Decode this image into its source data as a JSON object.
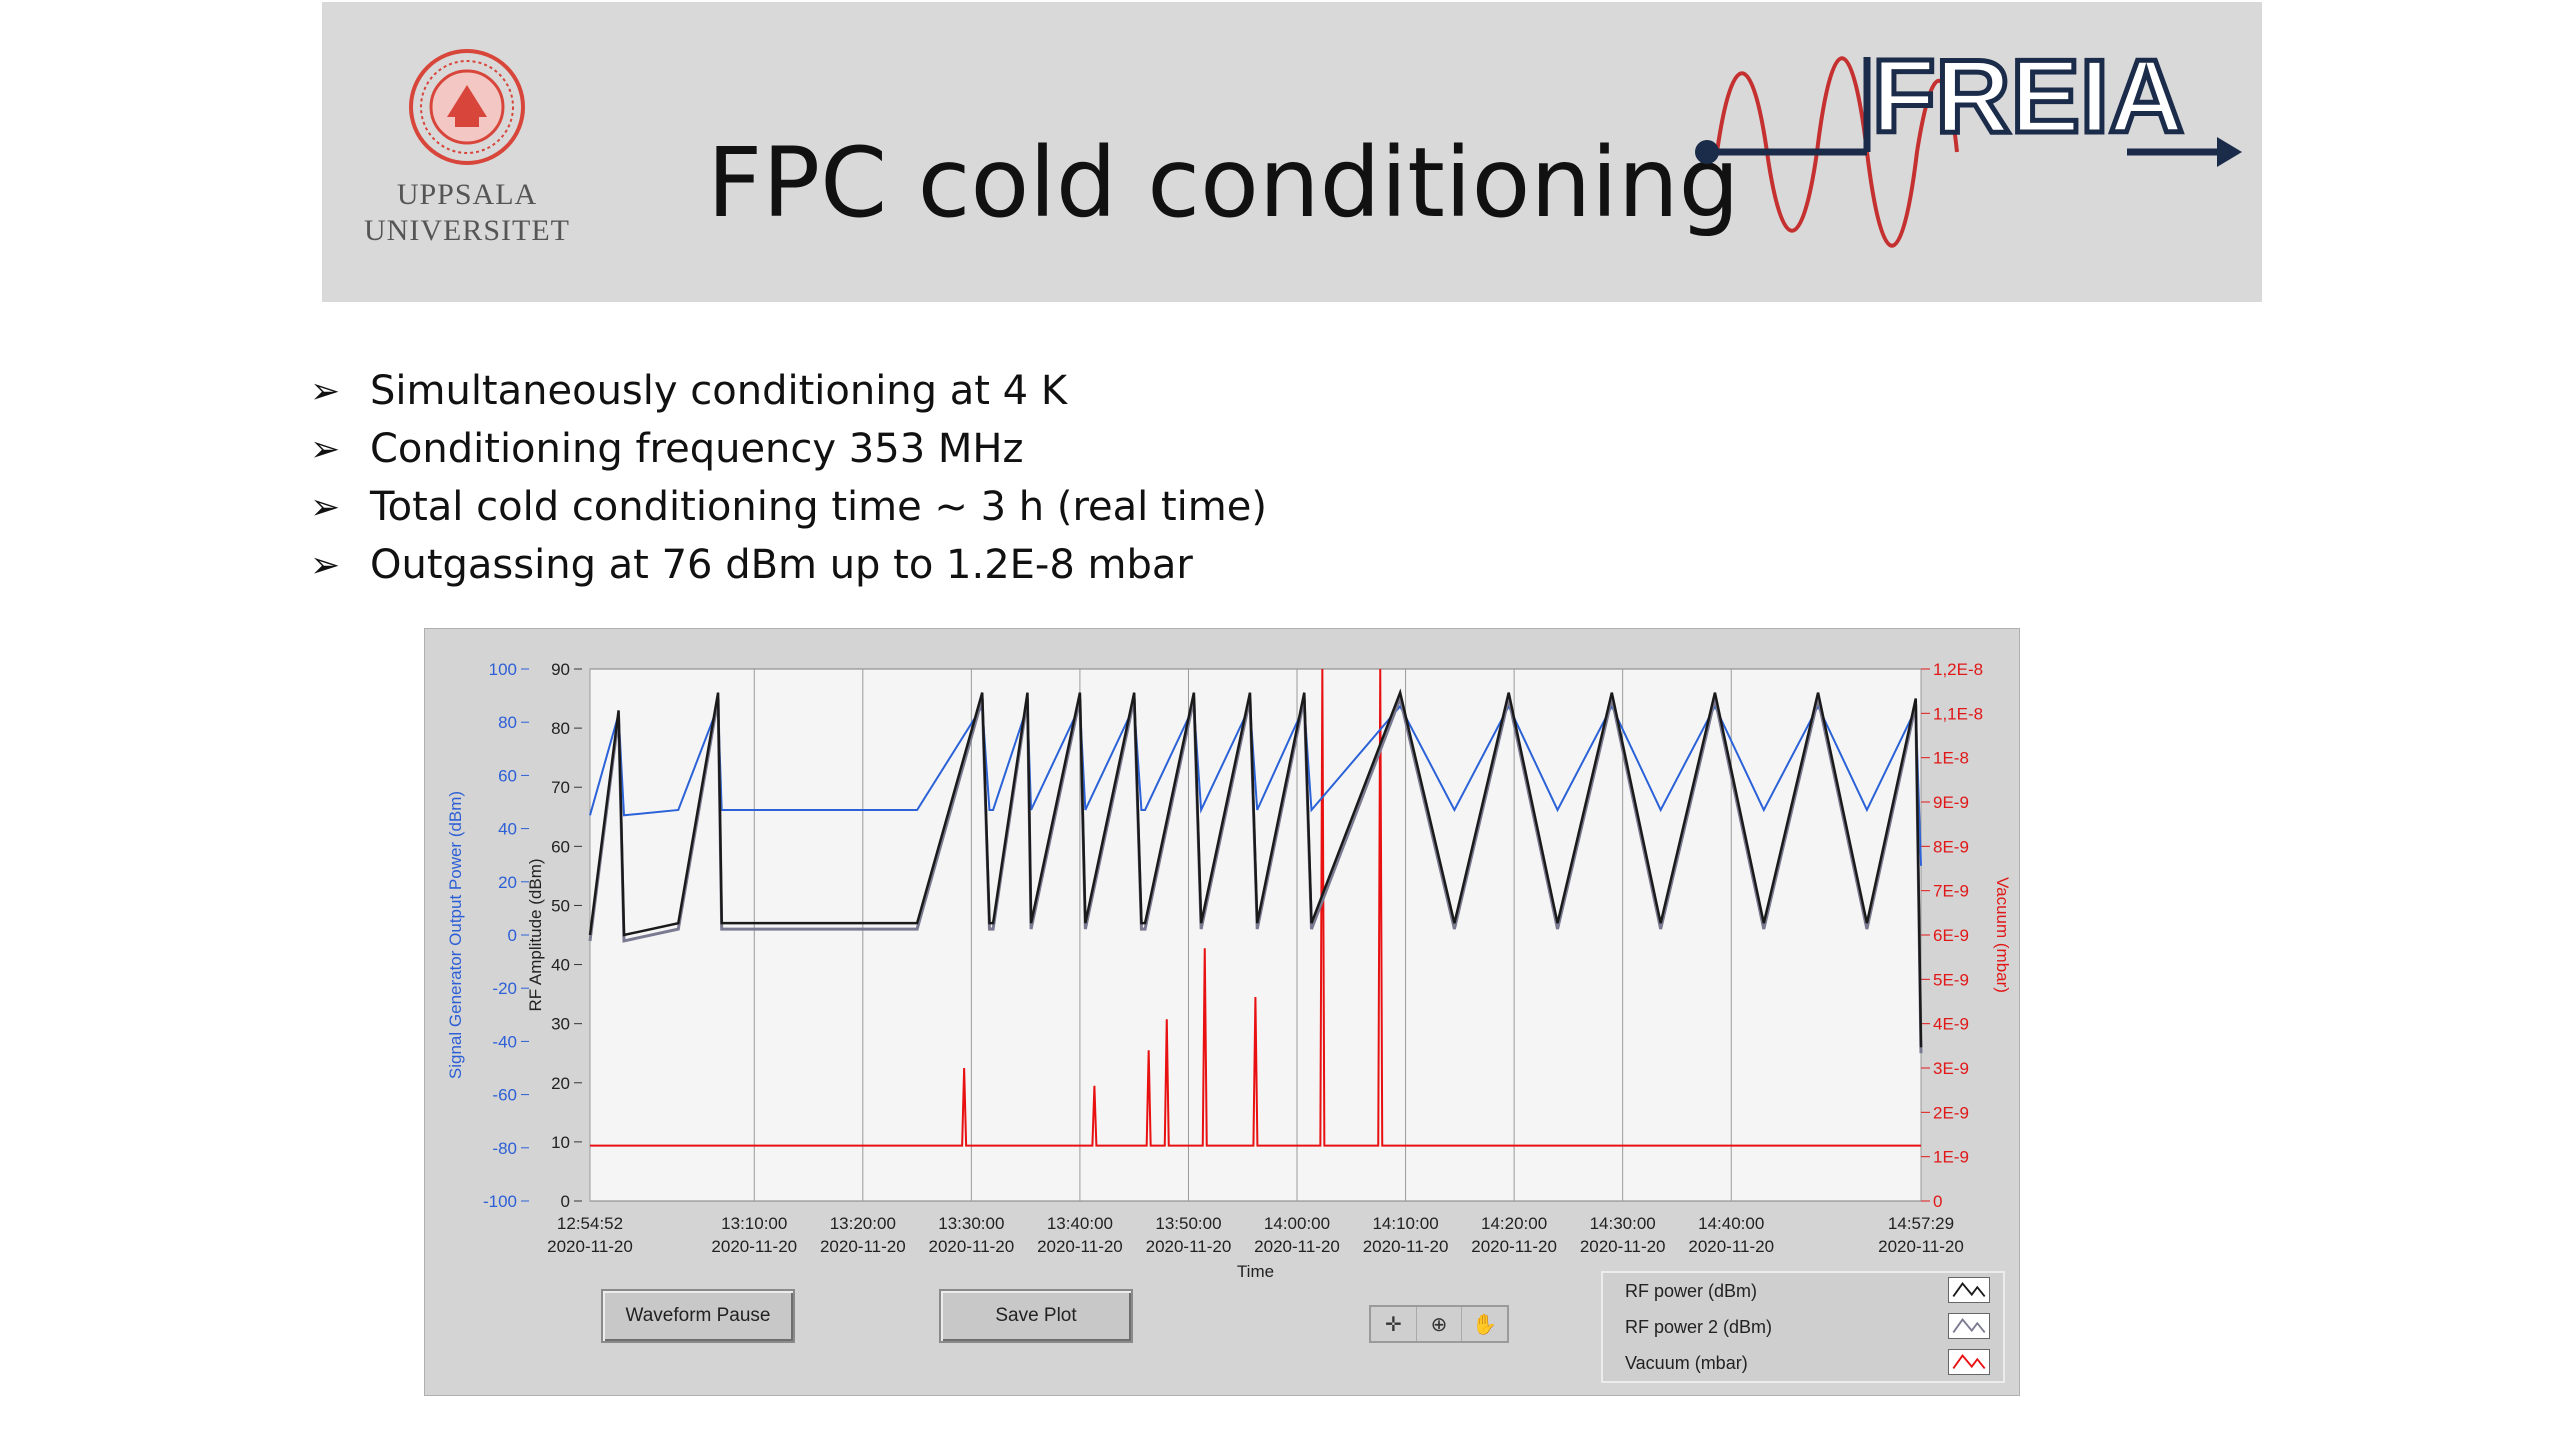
{
  "slide": {
    "title": "FPC cold conditioning",
    "university_lines": [
      "UPPSALA",
      "UNIVERSITET"
    ],
    "freia_logo_text": "FREIA",
    "bullets": [
      "Simultaneously conditioning at 4 K",
      "Conditioning frequency 353 MHz",
      "Total cold conditioning time ~ 3 h (real time)",
      "Outgassing at 76 dBm up to 1.2E-8 mbar"
    ]
  },
  "colors": {
    "blue_axis": "#2c5fd6",
    "red_axis": "#e01818",
    "rf_power": "#1a1a1a",
    "rf_power2": "#7a7a90",
    "vacuum": "#e81010",
    "generator": "#2b62d8",
    "uu_red": "#d8453a"
  },
  "panel": {
    "buttons": {
      "waveform_pause": "Waveform Pause",
      "save_plot": "Save Plot"
    },
    "tool_icons": [
      "crosshair-icon",
      "zoom-icon",
      "pan-hand-icon"
    ],
    "legend": [
      {
        "label": "RF power (dBm)",
        "color": "#1a1a1a"
      },
      {
        "label": "RF power 2 (dBm)",
        "color": "#7a7a90"
      },
      {
        "label": "Vacuum (mbar)",
        "color": "#e81010"
      }
    ]
  },
  "chart_data": {
    "type": "line",
    "xlabel": "Time",
    "ylabel_outer": "Signal Generator Output Power (dBm)",
    "ylabel_inner": "RF Amplitude (dBm)",
    "ylabel_right": "Vacuum (mbar)",
    "y_outer_ticks": [
      "100",
      "80",
      "60",
      "40",
      "20",
      "0",
      "-20",
      "-40",
      "-60",
      "-80",
      "-100"
    ],
    "y_inner_ticks": [
      "90",
      "80",
      "70",
      "60",
      "50",
      "40",
      "30",
      "20",
      "10",
      "0"
    ],
    "y_right_ticks": [
      "1,2E-8",
      "1,1E-8",
      "1E-8",
      "9E-9",
      "8E-9",
      "7E-9",
      "6E-9",
      "5E-9",
      "4E-9",
      "3E-9",
      "2E-9",
      "1E-9",
      "0"
    ],
    "x_ticks": [
      {
        "t": "12:54:52",
        "d": "2020-11-20"
      },
      {
        "t": "13:10:00",
        "d": "2020-11-20"
      },
      {
        "t": "13:20:00",
        "d": "2020-11-20"
      },
      {
        "t": "13:30:00",
        "d": "2020-11-20"
      },
      {
        "t": "13:40:00",
        "d": "2020-11-20"
      },
      {
        "t": "13:50:00",
        "d": "2020-11-20"
      },
      {
        "t": "14:00:00",
        "d": "2020-11-20"
      },
      {
        "t": "14:10:00",
        "d": "2020-11-20"
      },
      {
        "t": "14:20:00",
        "d": "2020-11-20"
      },
      {
        "t": "14:30:00",
        "d": "2020-11-20"
      },
      {
        "t": "14:40:00",
        "d": "2020-11-20"
      },
      {
        "t": "14:57:29",
        "d": "2020-11-20"
      }
    ],
    "ylim_outer": [
      -100,
      100
    ],
    "ylim_inner": [
      0,
      90
    ],
    "ylim_right": [
      0,
      1.2e-08
    ],
    "grid": "vertical",
    "rf_cycles": [
      {
        "start": "12:54:52",
        "peak": "12:57:30",
        "end": "12:58:00",
        "peak_dBm": 83,
        "low_dBm": 45
      },
      {
        "start": "13:03:00",
        "peak": "13:06:40",
        "end": "13:07:00",
        "peak_dBm": 86,
        "low_dBm": 47
      },
      {
        "start": "13:25:00",
        "peak": "13:31:00",
        "end": "13:31:40",
        "peak_dBm": 86,
        "low_dBm": 47
      },
      {
        "start": "13:32:00",
        "peak": "13:35:10",
        "end": "13:35:30",
        "peak_dBm": 86,
        "low_dBm": 47
      },
      {
        "start": "13:35:30",
        "peak": "13:40:00",
        "end": "13:40:30",
        "peak_dBm": 86,
        "low_dBm": 47
      },
      {
        "start": "13:40:30",
        "peak": "13:45:00",
        "end": "13:45:40",
        "peak_dBm": 86,
        "low_dBm": 47
      },
      {
        "start": "13:46:00",
        "peak": "13:50:30",
        "end": "13:51:10",
        "peak_dBm": 86,
        "low_dBm": 47
      },
      {
        "start": "13:51:10",
        "peak": "13:55:40",
        "end": "13:56:20",
        "peak_dBm": 86,
        "low_dBm": 47
      },
      {
        "start": "13:56:20",
        "peak": "14:00:40",
        "end": "14:01:20",
        "peak_dBm": 86,
        "low_dBm": 47
      }
    ],
    "rf_triangles": [
      {
        "low": "14:01:20",
        "peak": "14:09:30",
        "end": "14:14:30",
        "peak_dBm": 86,
        "low_dBm": 47
      },
      {
        "peak": "14:19:30",
        "end": "14:24:00",
        "peak_dBm": 86,
        "low_dBm": 47
      },
      {
        "peak": "14:29:00",
        "end": "14:33:30",
        "peak_dBm": 86,
        "low_dBm": 47
      },
      {
        "peak": "14:38:30",
        "end": "14:43:00",
        "peak_dBm": 86,
        "low_dBm": 47
      },
      {
        "peak": "14:48:00",
        "end": "14:52:30",
        "peak_dBm": 86,
        "low_dBm": 47
      },
      {
        "peak": "14:57:00",
        "end": "14:57:29",
        "peak_dBm": 85,
        "low_dBm": 26
      }
    ],
    "vacuum_spikes_mbar": [
      {
        "t": "13:29:20",
        "v": 3e-09
      },
      {
        "t": "13:41:20",
        "v": 2.6e-09
      },
      {
        "t": "13:46:20",
        "v": 3.4e-09
      },
      {
        "t": "13:48:00",
        "v": 4.1e-09
      },
      {
        "t": "13:51:30",
        "v": 5.7e-09
      },
      {
        "t": "13:56:10",
        "v": 4.6e-09
      },
      {
        "t": "14:02:20",
        "v": 1.2e-08
      },
      {
        "t": "14:07:40",
        "v": 1.2e-08
      }
    ],
    "vacuum_baseline_mbar": 1.25e-09
  }
}
